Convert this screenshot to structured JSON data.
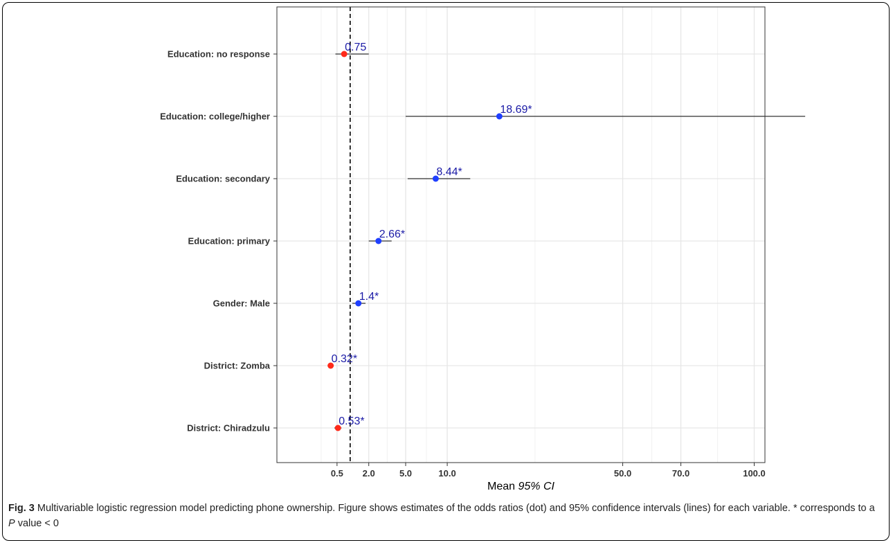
{
  "chart_data": {
    "type": "scatter",
    "title": "",
    "xlabel_prefix": "Mean ",
    "xlabel_italic": "95% CI",
    "ylabel": "",
    "x_ticks": [
      "0.5",
      "2.0",
      "5.0",
      "10.0",
      "50.0",
      "70.0",
      "100.0"
    ],
    "reference_line": 1,
    "grid": true,
    "colors": {
      "above": "#1f3fff",
      "below": "#ff2a1a",
      "ci": "#000000",
      "label": "#1a1aa6"
    },
    "rows": [
      {
        "label": "Education: no response",
        "value": 0.75,
        "ci_low": 0.45,
        "ci_high": 2.0,
        "text": "0.75"
      },
      {
        "label": "Education: college/higher",
        "value": 18.69,
        "ci_low": 5.0,
        "ci_high": 124,
        "text": "18.69*"
      },
      {
        "label": "Education: secondary",
        "value": 8.44,
        "ci_low": 5.2,
        "ci_high": 13.5,
        "text": "8.44*"
      },
      {
        "label": "Education: primary",
        "value": 2.66,
        "ci_low": 2.0,
        "ci_high": 3.7,
        "text": "2.66*"
      },
      {
        "label": "Gender: Male",
        "value": 1.4,
        "ci_low": 1.1,
        "ci_high": 1.8,
        "text": "1.4*"
      },
      {
        "label": "District: Zomba",
        "value": 0.32,
        "ci_low": 0.25,
        "ci_high": 0.4,
        "text": "0.32*"
      },
      {
        "label": "District: Chiradzulu",
        "value": 0.53,
        "ci_low": 0.42,
        "ci_high": 0.65,
        "text": "0.53*"
      }
    ]
  },
  "caption": {
    "fig_label": "Fig. 3",
    "text_1": " Multivariable logistic regression model predicting phone ownership. Figure shows estimates of the odds ratios (dot) and 95% confidence intervals (lines) for each variable. * corresponds to a ",
    "p_italic": "P",
    "text_2": " value < 0"
  }
}
